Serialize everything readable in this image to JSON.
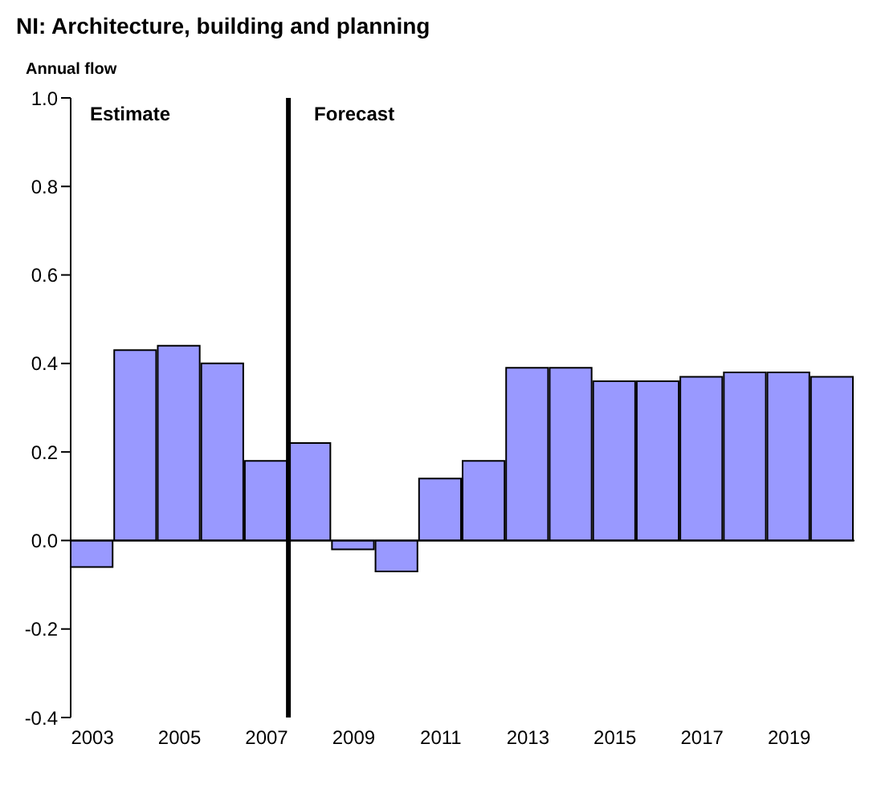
{
  "chart_data": {
    "type": "bar",
    "title": "NI: Architecture, building and planning",
    "ylabel": "Annual flow",
    "x": [
      2003,
      2004,
      2005,
      2006,
      2007,
      2008,
      2009,
      2010,
      2011,
      2012,
      2013,
      2014,
      2015,
      2016,
      2017,
      2018,
      2019,
      2020
    ],
    "values": [
      -0.06,
      0.43,
      0.44,
      0.4,
      0.18,
      0.22,
      -0.02,
      -0.07,
      0.14,
      0.18,
      0.39,
      0.39,
      0.36,
      0.36,
      0.37,
      0.38,
      0.38,
      0.37
    ],
    "color": "#9999ff",
    "xlim": [
      2002.5,
      2020.5
    ],
    "xticks": [
      2003,
      2005,
      2007,
      2009,
      2011,
      2013,
      2015,
      2017,
      2019
    ],
    "ylim": [
      -0.4,
      1.0
    ],
    "yticks": [
      {
        "value": -0.4,
        "label": "-0.4"
      },
      {
        "value": -0.2,
        "label": "-0.2"
      },
      {
        "value": 0,
        "label": "0.0"
      },
      {
        "value": 0.2,
        "label": "0.2"
      },
      {
        "value": 0.4,
        "label": "0.4"
      },
      {
        "value": 0.6,
        "label": "0.6"
      },
      {
        "value": 0.8,
        "label": "0.8"
      },
      {
        "value": 1.0,
        "label": "1.0"
      }
    ],
    "ref_lines": [
      {
        "axis": "x",
        "value": 2007.5,
        "color": "#000000"
      }
    ],
    "annotations": [
      "Estimate",
      "Forecast"
    ],
    "legend": false
  }
}
